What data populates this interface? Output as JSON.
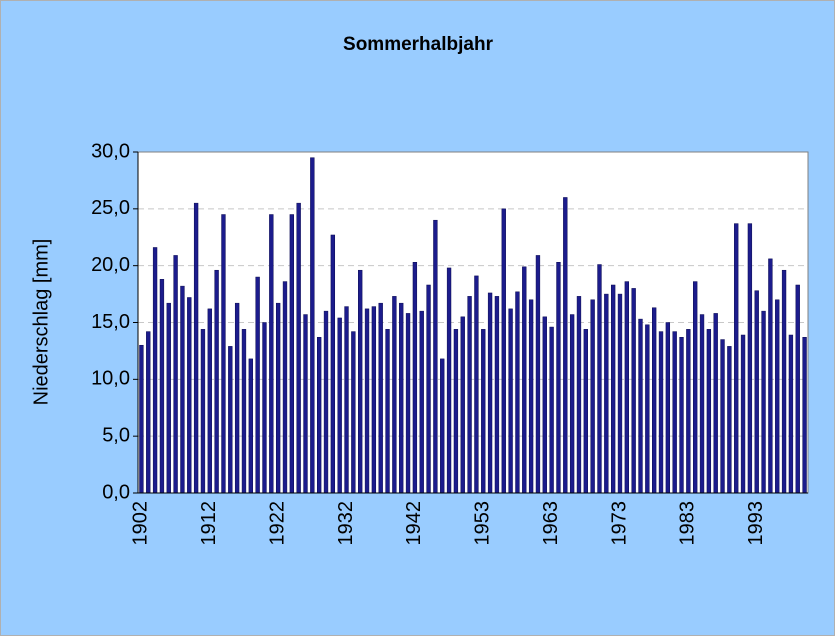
{
  "chart_data": {
    "type": "bar",
    "title": "Sommerhalbjahr",
    "y_label": "Niederschlag [mm]",
    "categories": [
      "1902",
      null,
      null,
      null,
      null,
      null,
      null,
      null,
      null,
      null,
      "1912",
      null,
      null,
      null,
      null,
      null,
      null,
      null,
      null,
      null,
      "1922",
      null,
      null,
      null,
      null,
      null,
      null,
      null,
      null,
      null,
      "1932",
      null,
      null,
      null,
      null,
      null,
      null,
      null,
      null,
      null,
      "1942",
      null,
      null,
      null,
      null,
      null,
      null,
      null,
      null,
      null,
      "1953",
      null,
      null,
      null,
      null,
      null,
      null,
      null,
      null,
      null,
      "1963",
      null,
      null,
      null,
      null,
      null,
      null,
      null,
      null,
      null,
      "1973",
      null,
      null,
      null,
      null,
      null,
      null,
      null,
      null,
      null,
      "1983",
      null,
      null,
      null,
      null,
      null,
      null,
      null,
      null,
      null,
      "1993",
      null,
      null,
      null,
      null,
      null,
      null,
      null
    ],
    "values": [
      13.0,
      14.2,
      21.6,
      18.8,
      16.7,
      20.9,
      18.2,
      17.2,
      25.5,
      14.4,
      16.2,
      19.6,
      24.5,
      12.9,
      16.7,
      14.4,
      11.8,
      19.0,
      15.0,
      24.5,
      16.7,
      18.6,
      24.5,
      25.5,
      15.7,
      29.5,
      13.7,
      16.0,
      22.7,
      15.4,
      16.4,
      14.2,
      19.6,
      16.2,
      16.4,
      16.7,
      14.4,
      17.3,
      16.7,
      15.8,
      20.3,
      16.0,
      18.3,
      24.0,
      11.8,
      19.8,
      14.4,
      15.5,
      17.3,
      19.1,
      14.4,
      17.6,
      17.3,
      25.0,
      16.2,
      17.7,
      19.9,
      17.0,
      20.9,
      15.5,
      14.6,
      20.3,
      26.0,
      15.7,
      17.3,
      14.4,
      17.0,
      20.1,
      17.5,
      18.3,
      17.5,
      18.6,
      18.0,
      15.3,
      14.8,
      16.3,
      14.2,
      15.0,
      14.2,
      13.7,
      14.4,
      18.6,
      15.7,
      14.4,
      15.8,
      13.5,
      12.9,
      23.7,
      13.9,
      23.7,
      17.8,
      16.0,
      20.6,
      17.0,
      19.6,
      13.9,
      18.3,
      13.7
    ],
    "color": "#1c1c8c",
    "ylim": [
      0,
      30
    ],
    "yticks": [
      {
        "value": 0,
        "label": "0,0"
      },
      {
        "value": 5,
        "label": "5,0"
      },
      {
        "value": 10,
        "label": "10,0"
      },
      {
        "value": 15,
        "label": "15,0"
      },
      {
        "value": 20,
        "label": "20,0"
      },
      {
        "value": 25,
        "label": "25,0"
      },
      {
        "value": 30,
        "label": "30,0"
      }
    ],
    "grid": true
  }
}
